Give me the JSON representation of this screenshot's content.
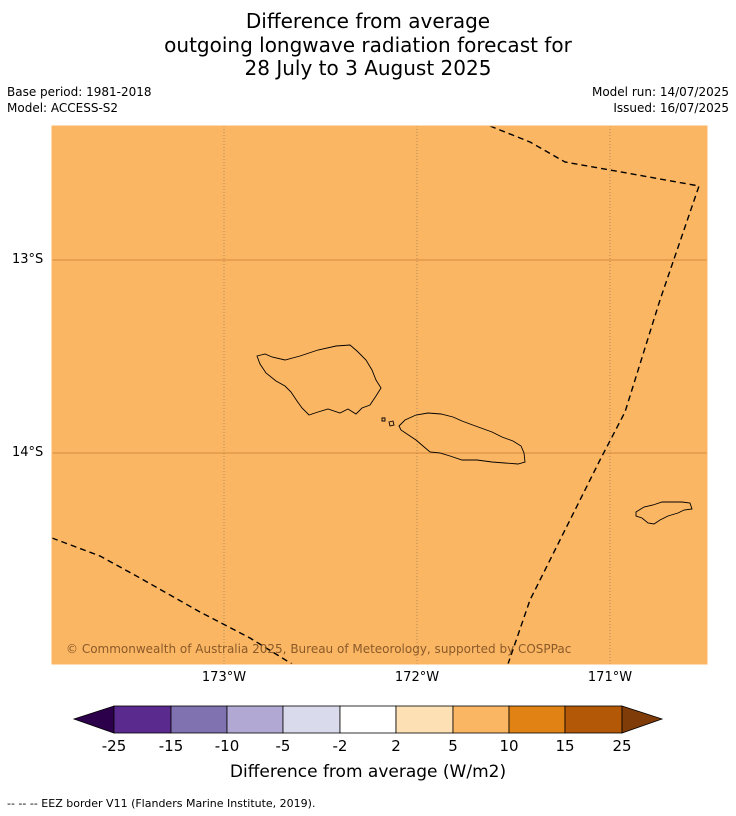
{
  "title": {
    "line1": "Difference from average",
    "line2": "outgoing longwave radiation forecast for",
    "line3": "28 July to 3 August 2025"
  },
  "meta": {
    "base_period": "Base period: 1981-2018",
    "model": "Model: ACCESS-S2",
    "model_run": "Model run: 14/07/2025",
    "issued": "Issued: 16/07/2025"
  },
  "map": {
    "fill_color": "#fbb663",
    "lat_labels": [
      "13°S",
      "14°S"
    ],
    "lon_labels": [
      "173°W",
      "172°W",
      "171°W"
    ],
    "copyright": "© Commonwealth of Australia 2025, Bureau of Meteorology, supported by COSPPac",
    "islands": [
      "Savai'i",
      "Upolu",
      "Tutuila"
    ]
  },
  "colorbar": {
    "ticks": [
      "-25",
      "-15",
      "-10",
      "-5",
      "-2",
      "2",
      "5",
      "10",
      "15",
      "25"
    ],
    "colors": [
      "#2d004b",
      "#5a2a8e",
      "#8072b0",
      "#b1a9d3",
      "#d9daeb",
      "#ffffff",
      "#fde0b4",
      "#fbb663",
      "#e08214",
      "#b35806",
      "#7f3b08"
    ],
    "title": "Difference from average (W/m2)"
  },
  "footer": "--  --  -- EEZ border V11 (Flanders Marine Institute, 2019)."
}
